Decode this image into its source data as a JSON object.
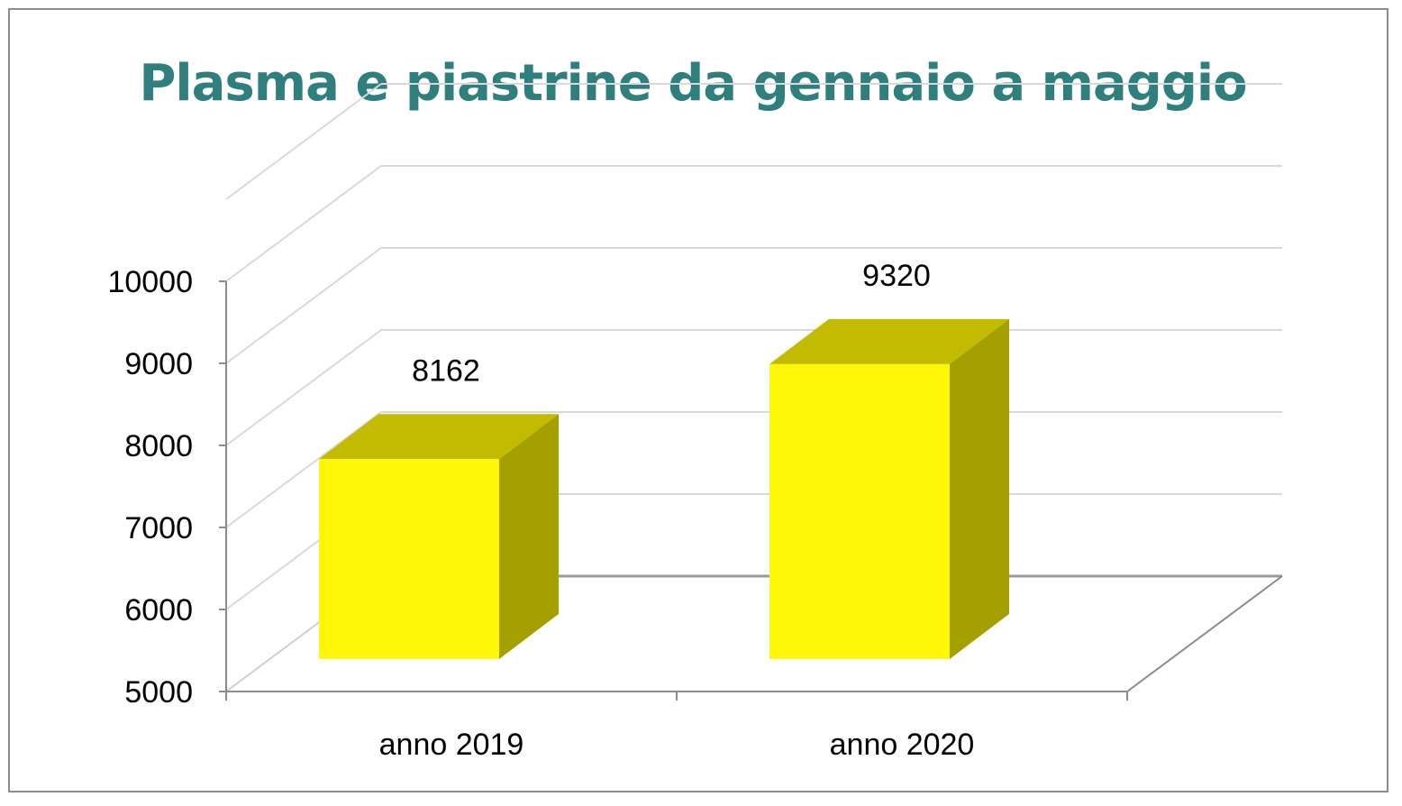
{
  "chart_data": {
    "type": "bar",
    "title": "Plasma e piastrine da gennaio a maggio",
    "categories": [
      "anno 2019",
      "anno 2020"
    ],
    "values": [
      8162,
      9320
    ],
    "ylim": [
      5000,
      10000
    ],
    "yticks": [
      "5000",
      "6000",
      "7000",
      "8000",
      "9000",
      "10000"
    ],
    "data_labels": [
      "8162",
      "9320"
    ],
    "grid": true,
    "style": "3d",
    "colors": {
      "bar_front": "#fff70a",
      "bar_top": "#c2bb00",
      "bar_side": "#a3a000",
      "title": "#2e7f7d",
      "gridline": "#d9d9d9",
      "axis": "#8c8c8c"
    }
  }
}
